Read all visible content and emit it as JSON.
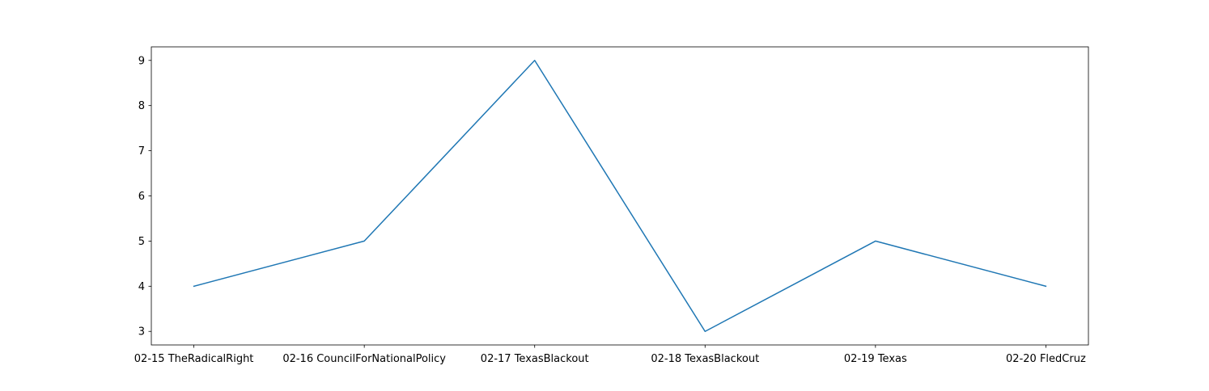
{
  "chart_data": {
    "type": "line",
    "categories": [
      "02-15 TheRadicalRight",
      "02-16 CouncilForNationalPolicy",
      "02-17 TexasBlackout",
      "02-18 TexasBlackout",
      "02-19 Texas",
      "02-20 FledCruz"
    ],
    "series": [
      {
        "values": [
          4,
          5,
          9,
          3,
          5,
          4
        ],
        "color": "#1f77b4"
      }
    ],
    "title": "",
    "xlabel": "",
    "ylabel": "",
    "ylim": [
      2.7,
      9.3
    ],
    "yticks": [
      3,
      4,
      5,
      6,
      7,
      8,
      9
    ],
    "grid": false
  }
}
